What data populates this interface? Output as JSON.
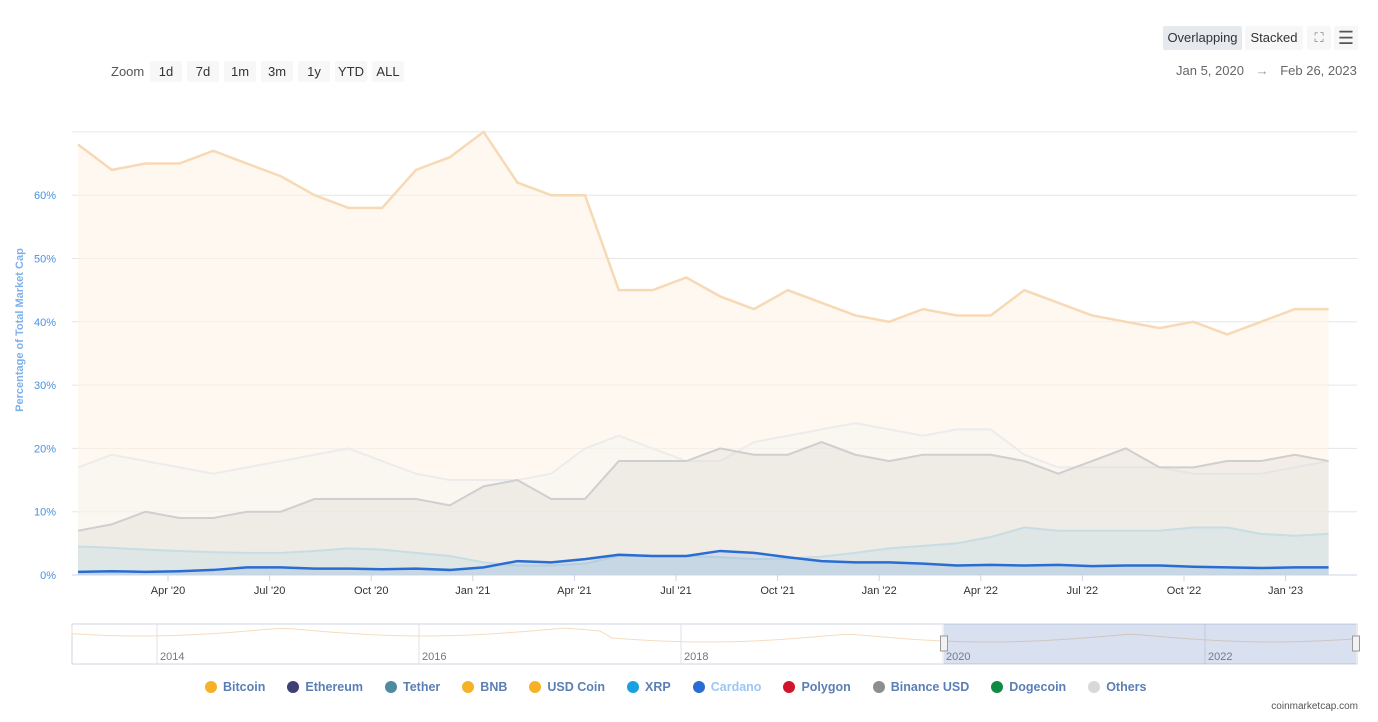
{
  "toolbar": {
    "zoom_label": "Zoom",
    "ranges": [
      "1d",
      "7d",
      "1m",
      "3m",
      "1y",
      "YTD",
      "ALL"
    ],
    "overlapping": "Overlapping",
    "stacked": "Stacked",
    "date_from": "Jan 5, 2020",
    "arrow": "→",
    "date_to": "Feb 26, 2023"
  },
  "credit": "coinmarketcap.com",
  "chart_data": {
    "type": "area",
    "ylabel": "Percentage of Total Market Cap",
    "ylim": [
      0,
      70
    ],
    "yticks": [
      "0%",
      "10%",
      "20%",
      "30%",
      "40%",
      "50%",
      "60%"
    ],
    "xticks": [
      "Apr '20",
      "Jul '20",
      "Oct '20",
      "Jan '21",
      "Apr '21",
      "Jul '21",
      "Oct '21",
      "Jan '22",
      "Apr '22",
      "Jul '22",
      "Oct '22",
      "Jan '23"
    ],
    "x_start": "2020-01",
    "x_interval": "monthly",
    "series": [
      {
        "name": "Bitcoin",
        "color": "#f7931a",
        "values": [
          68,
          64,
          65,
          65,
          67,
          65,
          63,
          60,
          58,
          58,
          64,
          66,
          70,
          62,
          60,
          60,
          45,
          45,
          47,
          44,
          42,
          45,
          43,
          41,
          40,
          42,
          41,
          41,
          45,
          43,
          41,
          40,
          39,
          40,
          38,
          40,
          42,
          42
        ]
      },
      {
        "name": "Others",
        "color": "#d9d9d9",
        "values": [
          17,
          19,
          18,
          17,
          16,
          17,
          18,
          19,
          20,
          18,
          16,
          15,
          15,
          15,
          16,
          20,
          22,
          20,
          18,
          18,
          21,
          22,
          23,
          24,
          23,
          22,
          23,
          23,
          19,
          17,
          17,
          17,
          17,
          16,
          16,
          16,
          17,
          18
        ]
      },
      {
        "name": "Ethereum",
        "color": "#3c3c7d",
        "values": [
          7,
          8,
          10,
          9,
          9,
          10,
          10,
          12,
          12,
          12,
          12,
          11,
          14,
          15,
          12,
          12,
          18,
          18,
          18,
          20,
          19,
          19,
          21,
          19,
          18,
          19,
          19,
          19,
          18,
          16,
          18,
          20,
          17,
          17,
          18,
          18,
          19,
          18
        ]
      },
      {
        "name": "Tether",
        "color": "#50af95",
        "values": [
          4.5,
          4.3,
          4,
          3.8,
          3.6,
          3.5,
          3.5,
          3.8,
          4.2,
          4,
          3.5,
          3,
          2,
          1.5,
          1.5,
          1.8,
          3,
          3,
          3,
          2.8,
          2.5,
          2.6,
          2.9,
          3.5,
          4.2,
          4.6,
          5,
          6,
          7.5,
          7,
          7,
          7,
          7,
          7.5,
          7.5,
          6.5,
          6.2,
          6.5
        ]
      },
      {
        "name": "Cardano",
        "color": "#2a6dd2",
        "values": [
          0.5,
          0.6,
          0.5,
          0.6,
          0.8,
          1.2,
          1.2,
          1,
          1,
          0.9,
          1,
          0.8,
          1.2,
          2.2,
          2,
          2.5,
          3.2,
          3,
          3,
          3.8,
          3.5,
          2.8,
          2.2,
          2,
          2,
          1.8,
          1.5,
          1.6,
          1.5,
          1.6,
          1.4,
          1.5,
          1.5,
          1.3,
          1.2,
          1.1,
          1.2,
          1.2
        ]
      }
    ],
    "navigator_labels": [
      "2014",
      "2016",
      "2018",
      "2020",
      "2022"
    ],
    "legend": [
      {
        "name": "Bitcoin",
        "color": "#f7b126"
      },
      {
        "name": "Ethereum",
        "color": "#3e3f73"
      },
      {
        "name": "Tether",
        "color": "#4e8aa0"
      },
      {
        "name": "BNB",
        "color": "#f7b126"
      },
      {
        "name": "USD Coin",
        "color": "#f7b126"
      },
      {
        "name": "XRP",
        "color": "#1aa0e0"
      },
      {
        "name": "Cardano",
        "color": "#2a6dd2",
        "highlighted": true
      },
      {
        "name": "Polygon",
        "color": "#d0142c"
      },
      {
        "name": "Binance USD",
        "color": "#8a8f92"
      },
      {
        "name": "Dogecoin",
        "color": "#118a46"
      },
      {
        "name": "Others",
        "color": "#d8d8d8"
      }
    ]
  }
}
